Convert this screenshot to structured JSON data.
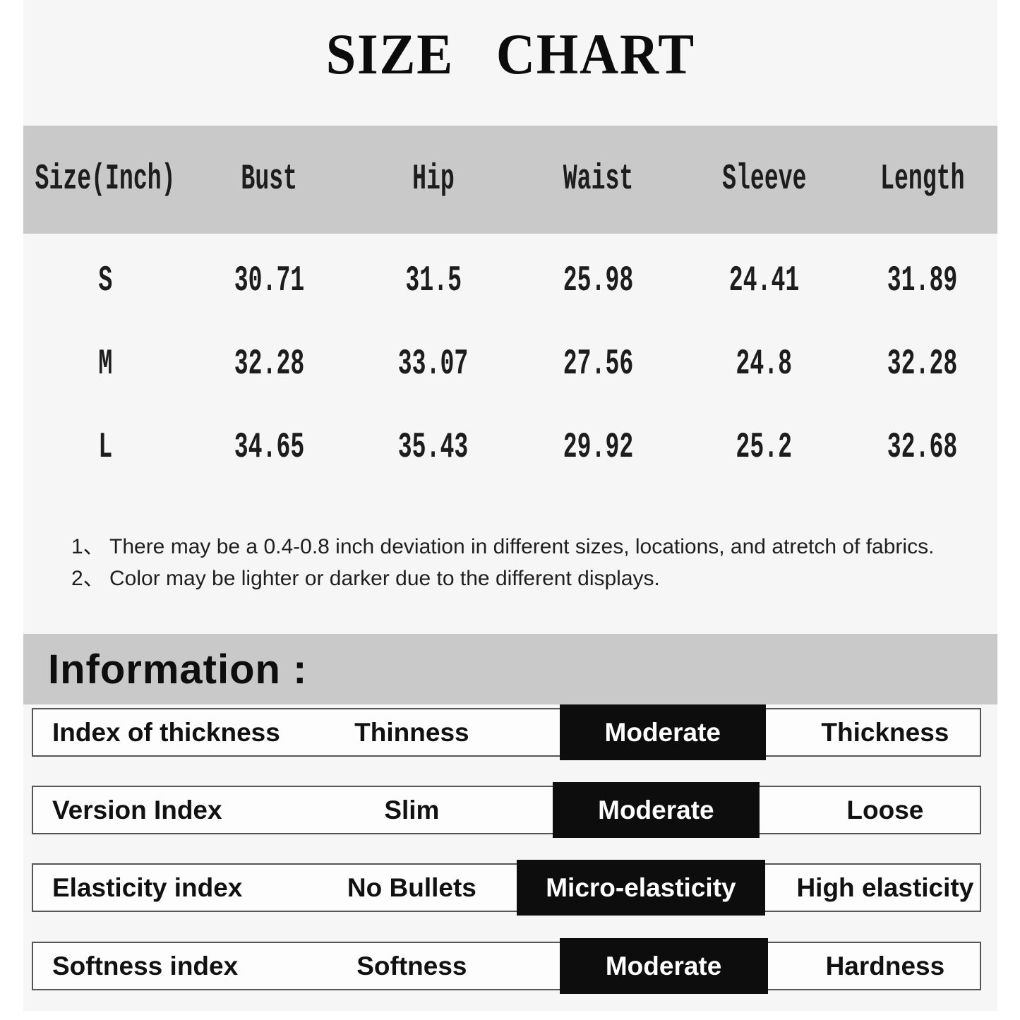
{
  "title": "SIZE CHART",
  "size_table": {
    "headers": [
      "Size(Inch)",
      "Bust",
      "Hip",
      "Waist",
      "Sleeve",
      "Length"
    ],
    "rows": [
      {
        "size": "S",
        "values": [
          "30.71",
          "31.5",
          "25.98",
          "24.41",
          "31.89"
        ]
      },
      {
        "size": "M",
        "values": [
          "32.28",
          "33.07",
          "27.56",
          "24.8",
          "32.28"
        ]
      },
      {
        "size": "L",
        "values": [
          "34.65",
          "35.43",
          "29.92",
          "25.2",
          "32.68"
        ]
      }
    ]
  },
  "notes": [
    {
      "num": "1、",
      "text": "There may be a 0.4-0.8 inch deviation in different sizes, locations, and atretch of fabrics."
    },
    {
      "num": "2、",
      "text": "Color may be lighter or darker due to the different displays."
    }
  ],
  "information": {
    "heading": "Information :",
    "rows": [
      {
        "label": "Index of thickness",
        "options": [
          "Thinness",
          "Moderate",
          "Thickness"
        ],
        "selected": "Moderate"
      },
      {
        "label": "Version Index",
        "options": [
          "Slim",
          "Moderate",
          "Loose"
        ],
        "selected": "Moderate"
      },
      {
        "label": "Elasticity index",
        "options": [
          "No Bullets",
          "Micro-elasticity",
          "High elasticity"
        ],
        "selected": "Micro-elasticity"
      },
      {
        "label": "Softness index",
        "options": [
          "Softness",
          "Moderate",
          "Hardness"
        ],
        "selected": "Moderate"
      }
    ]
  },
  "colors": {
    "page_background": "#f6f6f6",
    "band_gray": "#c9c9c9",
    "highlight_black": "#0d0d0d",
    "highlight_text": "#ffffff",
    "bar_border": "#565656",
    "text": "#111111"
  },
  "chart_data": {
    "type": "table",
    "title": "SIZE CHART",
    "unit": "Inch",
    "columns": [
      "Size(Inch)",
      "Bust",
      "Hip",
      "Waist",
      "Sleeve",
      "Length"
    ],
    "rows": [
      [
        "S",
        30.71,
        31.5,
        25.98,
        24.41,
        31.89
      ],
      [
        "M",
        32.28,
        33.07,
        27.56,
        24.8,
        32.28
      ],
      [
        "L",
        34.65,
        35.43,
        29.92,
        25.2,
        32.68
      ]
    ],
    "legend_position": "none",
    "grid": false
  }
}
